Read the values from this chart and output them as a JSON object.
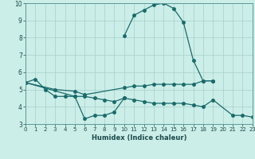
{
  "xlabel": "Humidex (Indice chaleur)",
  "bg_color": "#cceee8",
  "grid_color": "#aad4ce",
  "line_color": "#1a6b6b",
  "xlim": [
    0,
    23
  ],
  "ylim": [
    3,
    10
  ],
  "xticks": [
    0,
    1,
    2,
    3,
    4,
    5,
    6,
    7,
    8,
    9,
    10,
    11,
    12,
    13,
    14,
    15,
    16,
    17,
    18,
    19,
    20,
    21,
    22,
    23
  ],
  "yticks": [
    3,
    4,
    5,
    6,
    7,
    8,
    9,
    10
  ],
  "lines": [
    {
      "x": [
        0,
        1,
        2,
        3,
        4,
        5,
        6,
        7,
        8,
        9,
        10
      ],
      "y": [
        5.4,
        5.6,
        5.0,
        4.6,
        4.6,
        4.6,
        3.3,
        3.5,
        3.5,
        3.7,
        4.5
      ]
    },
    {
      "x": [
        0,
        3,
        5,
        6,
        10,
        11,
        12,
        13,
        14,
        15,
        16,
        17,
        18,
        19
      ],
      "y": [
        5.4,
        5.0,
        4.9,
        4.7,
        5.1,
        5.2,
        5.2,
        5.3,
        5.3,
        5.3,
        5.3,
        5.3,
        5.5,
        5.5
      ]
    },
    {
      "x": [
        0,
        5,
        6,
        7,
        8,
        9,
        10,
        11,
        12,
        13,
        14,
        15,
        16,
        17,
        18,
        19,
        21,
        22,
        23
      ],
      "y": [
        5.4,
        4.6,
        4.6,
        4.5,
        4.4,
        4.3,
        4.5,
        4.4,
        4.3,
        4.2,
        4.2,
        4.2,
        4.2,
        4.1,
        4.0,
        4.4,
        3.5,
        3.5,
        3.4
      ]
    },
    {
      "x": [
        10,
        11,
        12,
        13,
        14,
        15,
        16,
        17,
        18,
        19
      ],
      "y": [
        8.1,
        9.3,
        9.6,
        9.9,
        10.0,
        9.7,
        8.9,
        6.7,
        5.5,
        5.5
      ]
    }
  ]
}
